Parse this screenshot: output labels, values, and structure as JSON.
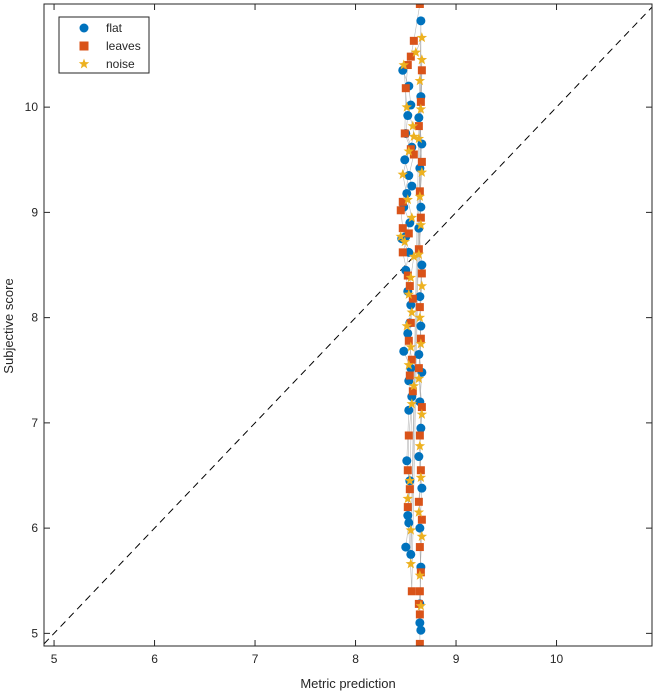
{
  "chart_data": {
    "type": "scatter",
    "title": "",
    "xlabel": "Metric prediction",
    "ylabel": "Subjective score",
    "xlim": [
      4.9,
      10.95
    ],
    "ylim": [
      4.88,
      10.98
    ],
    "xticks": [
      "5",
      "6",
      "7",
      "8",
      "9",
      "10"
    ],
    "yticks": [
      "5",
      "6",
      "7",
      "8",
      "9",
      "10"
    ],
    "grid": false,
    "legend_position": "top-left",
    "reference_line": "y = x (dashed)",
    "series": [
      {
        "name": "flat",
        "marker": "circle",
        "color": "#0072BD",
        "points": [
          [
            8.47,
            10.35
          ],
          [
            8.53,
            10.2
          ],
          [
            8.55,
            10.02
          ],
          [
            8.52,
            9.92
          ],
          [
            8.5,
            9.75
          ],
          [
            8.56,
            9.62
          ],
          [
            8.49,
            9.5
          ],
          [
            8.53,
            9.35
          ],
          [
            8.56,
            9.25
          ],
          [
            8.51,
            9.18
          ],
          [
            8.48,
            9.05
          ],
          [
            8.54,
            8.9
          ],
          [
            8.5,
            8.77
          ],
          [
            8.46,
            8.75
          ],
          [
            8.53,
            8.62
          ],
          [
            8.5,
            8.45
          ],
          [
            8.52,
            8.25
          ],
          [
            8.55,
            8.12
          ],
          [
            8.54,
            7.95
          ],
          [
            8.52,
            7.85
          ],
          [
            8.48,
            7.68
          ],
          [
            8.55,
            7.52
          ],
          [
            8.53,
            7.4
          ],
          [
            8.56,
            7.25
          ],
          [
            8.53,
            7.12
          ],
          [
            8.51,
            6.64
          ],
          [
            8.54,
            6.45
          ],
          [
            8.52,
            6.12
          ],
          [
            8.53,
            6.05
          ],
          [
            8.5,
            5.82
          ],
          [
            8.55,
            5.75
          ],
          [
            8.65,
            10.82
          ],
          [
            8.65,
            10.1
          ],
          [
            8.63,
            9.9
          ],
          [
            8.66,
            9.65
          ],
          [
            8.64,
            9.42
          ],
          [
            8.65,
            9.05
          ],
          [
            8.63,
            8.85
          ],
          [
            8.66,
            8.5
          ],
          [
            8.64,
            8.2
          ],
          [
            8.65,
            7.92
          ],
          [
            8.63,
            7.65
          ],
          [
            8.66,
            7.48
          ],
          [
            8.64,
            7.2
          ],
          [
            8.65,
            6.95
          ],
          [
            8.63,
            6.68
          ],
          [
            8.66,
            6.38
          ],
          [
            8.64,
            6.0
          ],
          [
            8.65,
            5.63
          ],
          [
            8.64,
            5.28
          ],
          [
            8.64,
            5.1
          ],
          [
            8.65,
            5.03
          ]
        ]
      },
      {
        "name": "leaves",
        "marker": "square",
        "color": "#D95319",
        "points": [
          [
            8.64,
            10.98
          ],
          [
            8.58,
            10.63
          ],
          [
            8.55,
            10.48
          ],
          [
            8.52,
            10.4
          ],
          [
            8.5,
            10.18
          ],
          [
            8.49,
            9.75
          ],
          [
            8.55,
            9.6
          ],
          [
            8.58,
            9.55
          ],
          [
            8.47,
            9.1
          ],
          [
            8.45,
            9.02
          ],
          [
            8.47,
            8.85
          ],
          [
            8.53,
            8.8
          ],
          [
            8.47,
            8.62
          ],
          [
            8.52,
            8.4
          ],
          [
            8.54,
            8.3
          ],
          [
            8.57,
            8.18
          ],
          [
            8.55,
            7.95
          ],
          [
            8.53,
            7.78
          ],
          [
            8.56,
            7.6
          ],
          [
            8.54,
            7.45
          ],
          [
            8.57,
            7.3
          ],
          [
            8.53,
            6.88
          ],
          [
            8.52,
            6.55
          ],
          [
            8.54,
            6.37
          ],
          [
            8.52,
            6.2
          ],
          [
            8.56,
            5.4
          ],
          [
            8.66,
            10.35
          ],
          [
            8.65,
            10.05
          ],
          [
            8.63,
            9.82
          ],
          [
            8.66,
            9.48
          ],
          [
            8.64,
            9.2
          ],
          [
            8.65,
            8.95
          ],
          [
            8.63,
            8.65
          ],
          [
            8.66,
            8.42
          ],
          [
            8.64,
            8.1
          ],
          [
            8.65,
            7.8
          ],
          [
            8.63,
            7.52
          ],
          [
            8.66,
            7.15
          ],
          [
            8.64,
            6.88
          ],
          [
            8.65,
            6.55
          ],
          [
            8.63,
            6.25
          ],
          [
            8.66,
            6.08
          ],
          [
            8.64,
            5.82
          ],
          [
            8.65,
            5.58
          ],
          [
            8.64,
            5.4
          ],
          [
            8.63,
            5.28
          ],
          [
            8.64,
            5.18
          ],
          [
            8.64,
            4.9
          ]
        ]
      },
      {
        "name": "noise",
        "marker": "star",
        "color": "#EDB120",
        "points": [
          [
            8.66,
            10.66
          ],
          [
            8.6,
            10.52
          ],
          [
            8.48,
            10.4
          ],
          [
            8.51,
            10.0
          ],
          [
            8.57,
            9.82
          ],
          [
            8.58,
            9.72
          ],
          [
            8.53,
            9.58
          ],
          [
            8.47,
            9.36
          ],
          [
            8.52,
            9.12
          ],
          [
            8.56,
            8.95
          ],
          [
            8.45,
            8.77
          ],
          [
            8.49,
            8.72
          ],
          [
            8.58,
            8.58
          ],
          [
            8.55,
            8.38
          ],
          [
            8.53,
            8.22
          ],
          [
            8.56,
            8.05
          ],
          [
            8.51,
            7.92
          ],
          [
            8.55,
            7.72
          ],
          [
            8.53,
            7.55
          ],
          [
            8.58,
            7.35
          ],
          [
            8.56,
            7.18
          ],
          [
            8.54,
            6.45
          ],
          [
            8.52,
            6.28
          ],
          [
            8.55,
            5.98
          ],
          [
            8.55,
            5.66
          ],
          [
            8.66,
            10.45
          ],
          [
            8.64,
            10.25
          ],
          [
            8.65,
            9.98
          ],
          [
            8.63,
            9.7
          ],
          [
            8.66,
            9.38
          ],
          [
            8.64,
            9.15
          ],
          [
            8.65,
            8.88
          ],
          [
            8.63,
            8.6
          ],
          [
            8.66,
            8.3
          ],
          [
            8.64,
            8.0
          ],
          [
            8.65,
            7.75
          ],
          [
            8.63,
            7.42
          ],
          [
            8.66,
            7.08
          ],
          [
            8.64,
            6.78
          ],
          [
            8.65,
            6.48
          ],
          [
            8.63,
            6.15
          ],
          [
            8.66,
            5.92
          ],
          [
            8.64,
            5.55
          ],
          [
            8.65,
            5.26
          ]
        ]
      }
    ]
  }
}
